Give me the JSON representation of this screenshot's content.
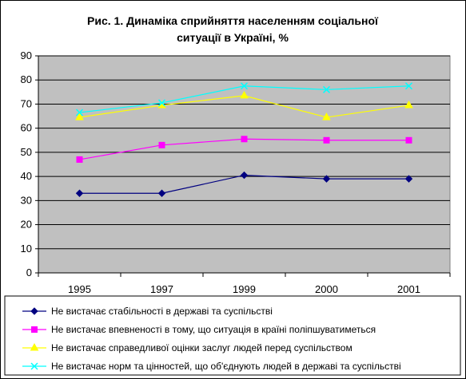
{
  "chart_data": {
    "type": "line",
    "title": [
      "Рис. 1. Динаміка сприйняття населенням соціальної",
      "ситуації в Україні, %"
    ],
    "xlabel": "",
    "ylabel": "",
    "categories": [
      "1995",
      "1997",
      "1999",
      "2000",
      "2001"
    ],
    "ylim": [
      0,
      90
    ],
    "yticks": [
      0,
      10,
      20,
      30,
      40,
      50,
      60,
      70,
      80,
      90
    ],
    "grid": true,
    "plot_background": "#c0c0c0",
    "legend_position": "bottom",
    "series": [
      {
        "name": "Не вистачає стабільності в державі та суспільстві",
        "values": [
          33,
          33,
          40.5,
          39,
          39
        ],
        "color": "#000080",
        "marker": "diamond"
      },
      {
        "name": "Не вистачає впевненості в тому, що ситуація в країні поліпшуватиметься",
        "values": [
          47,
          53,
          55.5,
          55,
          55
        ],
        "color": "#ff00ff",
        "marker": "square"
      },
      {
        "name": "Не вистачає справедливої оцінки заслуг людей перед суспільством",
        "values": [
          64.5,
          69.5,
          73.5,
          64.5,
          69.5
        ],
        "color": "#ffff00",
        "marker": "triangle"
      },
      {
        "name": "Не вистачає норм та цінностей, що об'єднують людей в державі та суспільстві",
        "values": [
          66.5,
          70.5,
          77.5,
          76,
          77.5
        ],
        "color": "#00ffff",
        "marker": "x"
      }
    ]
  }
}
